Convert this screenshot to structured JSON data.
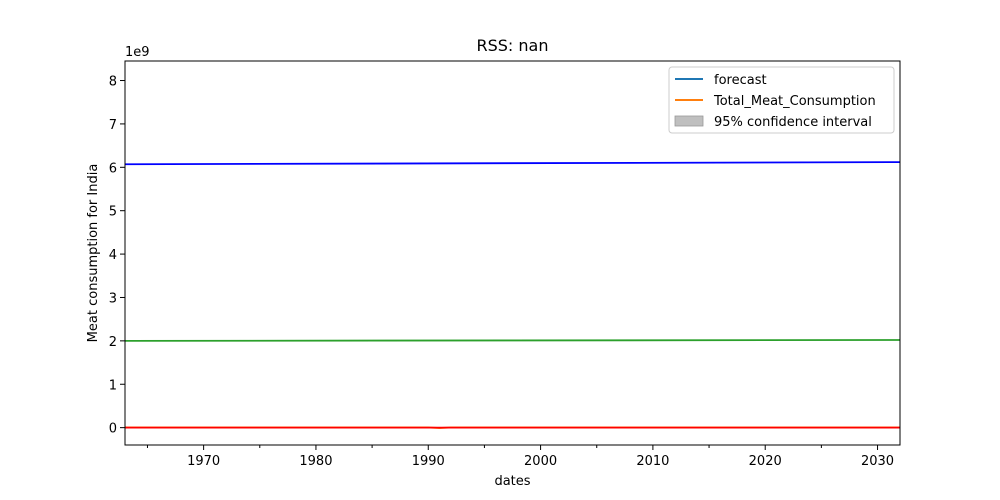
{
  "chart_data": {
    "type": "line",
    "title": "RSS: nan",
    "xlabel": "dates",
    "ylabel": "Meat consumption for India",
    "y_offset_label": "1e9",
    "xlim": [
      1963,
      2032
    ],
    "ylim": [
      -0.4,
      8.45
    ],
    "x_ticks": [
      1970,
      1980,
      1990,
      2000,
      2010,
      2020,
      2030
    ],
    "x_minor_ticks": [
      1965,
      1975,
      1985,
      1995,
      2005,
      2015,
      2025
    ],
    "y_ticks": [
      0,
      1,
      2,
      3,
      4,
      5,
      6,
      7,
      8
    ],
    "grid": false,
    "legend_position": "top-right",
    "legend": [
      {
        "label": "forecast",
        "kind": "line",
        "color": "#1f77b4"
      },
      {
        "label": "Total_Meat_Consumption",
        "kind": "line",
        "color": "#ff7f0e"
      },
      {
        "label": "95% confidence interval",
        "kind": "patch",
        "color": "#bfbfbf"
      }
    ],
    "series": [
      {
        "color": "#0000ff",
        "x": [
          1963,
          2032
        ],
        "y": [
          6.07,
          6.12
        ]
      },
      {
        "color": "#2ca02c",
        "x": [
          1963,
          2032
        ],
        "y": [
          2.0,
          2.02
        ]
      },
      {
        "color": "#ff7f0e",
        "x": [
          1963,
          1990,
          1991,
          1992,
          2032
        ],
        "y": [
          0.005,
          0.005,
          -0.01,
          0.005,
          0.005
        ]
      },
      {
        "color": "#ff0000",
        "x": [
          1963,
          2032
        ],
        "y": [
          0.0,
          0.0
        ]
      }
    ]
  }
}
